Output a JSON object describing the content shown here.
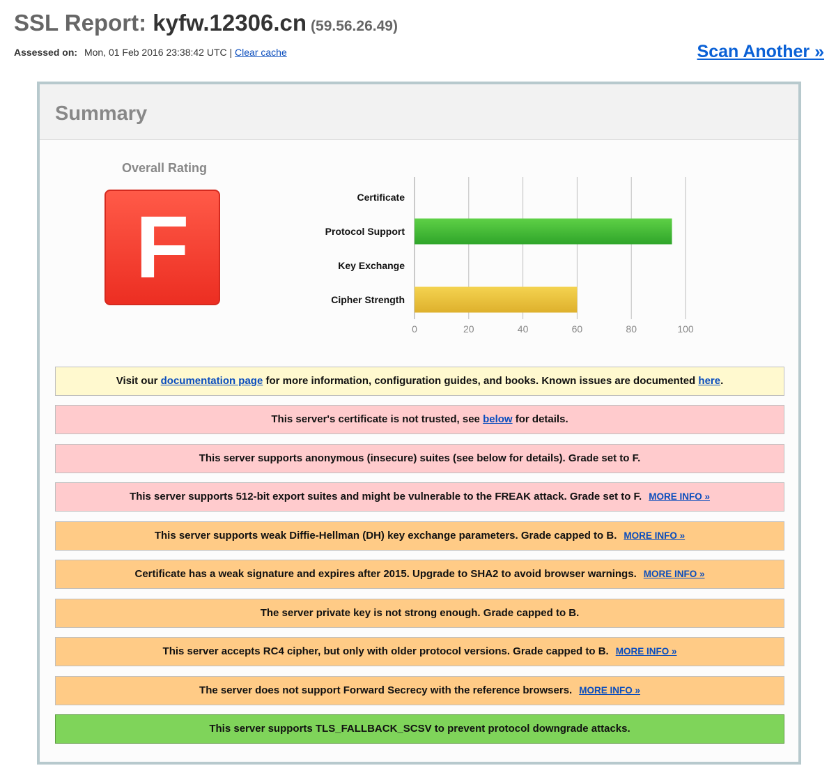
{
  "header": {
    "title_prefix": "SSL Report:",
    "host": "kyfw.12306.cn",
    "ip": "(59.56.26.49)",
    "assessed_label": "Assessed on:",
    "assessed_value": "Mon, 01 Feb 2016 23:38:42 UTC",
    "separator": "|",
    "clear_cache": "Clear cache",
    "scan_another": "Scan Another »"
  },
  "summary": {
    "title": "Summary",
    "overall_label": "Overall Rating",
    "grade": "F",
    "grade_color": "#ef3526"
  },
  "chart_data": {
    "type": "bar",
    "orientation": "horizontal",
    "categories": [
      "Certificate",
      "Protocol Support",
      "Key Exchange",
      "Cipher Strength"
    ],
    "values": [
      0,
      95,
      0,
      60
    ],
    "colors": [
      "#44bb33",
      "#44bb33",
      "#44bb33",
      "#e8c23a"
    ],
    "xlim": [
      0,
      100
    ],
    "ticks": [
      "0",
      "20",
      "40",
      "60",
      "80",
      "100"
    ],
    "grid": true
  },
  "notices": [
    {
      "color": "yellow",
      "parts": [
        {
          "text": "Visit our "
        },
        {
          "text": "documentation page",
          "link": true
        },
        {
          "text": " for more information, configuration guides, and books. Known issues are documented "
        },
        {
          "text": "here",
          "link": true
        },
        {
          "text": "."
        }
      ]
    },
    {
      "color": "pink",
      "parts": [
        {
          "text": "This server's certificate is not trusted, see "
        },
        {
          "text": "below",
          "link": true
        },
        {
          "text": " for details."
        }
      ]
    },
    {
      "color": "pink",
      "parts": [
        {
          "text": "This server supports anonymous (insecure) suites (see below for details). Grade set to F."
        }
      ]
    },
    {
      "color": "pink",
      "parts": [
        {
          "text": "This server supports 512-bit export suites and might be vulnerable to the FREAK attack. Grade set to F."
        },
        {
          "text": "MORE INFO »",
          "link": true,
          "more": true
        }
      ]
    },
    {
      "color": "orange",
      "parts": [
        {
          "text": "This server supports weak Diffie-Hellman (DH) key exchange parameters. Grade capped to B."
        },
        {
          "text": "MORE INFO »",
          "link": true,
          "more": true
        }
      ]
    },
    {
      "color": "orange",
      "parts": [
        {
          "text": "Certificate has a weak signature and expires after 2015. Upgrade to SHA2 to avoid browser warnings."
        },
        {
          "text": "MORE INFO »",
          "link": true,
          "more": true
        }
      ]
    },
    {
      "color": "orange",
      "parts": [
        {
          "text": "The server private key is not strong enough. Grade capped to B."
        }
      ]
    },
    {
      "color": "orange",
      "parts": [
        {
          "text": "This server accepts RC4 cipher, but only with older protocol versions. Grade capped to B."
        },
        {
          "text": "MORE INFO »",
          "link": true,
          "more": true
        }
      ]
    },
    {
      "color": "orange",
      "parts": [
        {
          "text": "The server does not support Forward Secrecy with the reference browsers."
        },
        {
          "text": "MORE INFO »",
          "link": true,
          "more": true
        }
      ]
    },
    {
      "color": "green",
      "parts": [
        {
          "text": "This server supports TLS_FALLBACK_SCSV to prevent protocol downgrade attacks."
        }
      ]
    }
  ]
}
